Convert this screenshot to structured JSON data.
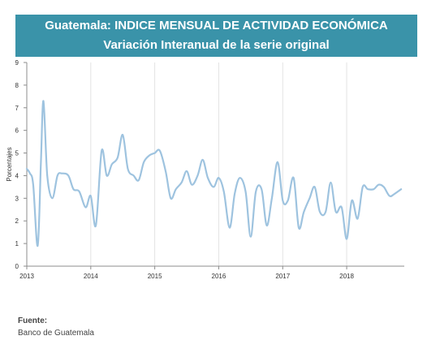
{
  "header": {
    "title": "Guatemala: INDICE MENSUAL DE ACTIVIDAD ECONÓMICA",
    "subtitle": "Variación Interanual de la serie original"
  },
  "footer": {
    "source_label": "Fuente:",
    "source_text": "Banco de Guatemala"
  },
  "colors": {
    "banner": "#3a93a9",
    "line": "#9ec3df",
    "grid": "#e3e3e3"
  },
  "chart_data": {
    "type": "line",
    "title": "",
    "xlabel": "",
    "ylabel": "Porcentajes",
    "ylim": [
      0,
      9
    ],
    "yticks": [
      "0",
      "1",
      "2",
      "3",
      "4",
      "5",
      "6",
      "7",
      "8",
      "9"
    ],
    "xlim": [
      2013.0,
      2018.9
    ],
    "xticks": [
      "2013",
      "2014",
      "2015",
      "2016",
      "2017",
      "2018"
    ],
    "grid": "vertical",
    "series": [
      {
        "name": "",
        "points": [
          [
            2013.0,
            4.3
          ],
          [
            2013.05,
            4.1
          ],
          [
            2013.1,
            3.6
          ],
          [
            2013.17,
            0.9
          ],
          [
            2013.22,
            4.5
          ],
          [
            2013.26,
            7.3
          ],
          [
            2013.32,
            4.0
          ],
          [
            2013.4,
            3.0
          ],
          [
            2013.48,
            4.0
          ],
          [
            2013.55,
            4.1
          ],
          [
            2013.65,
            4.0
          ],
          [
            2013.73,
            3.4
          ],
          [
            2013.82,
            3.3
          ],
          [
            2013.92,
            2.6
          ],
          [
            2014.0,
            3.1
          ],
          [
            2014.08,
            1.8
          ],
          [
            2014.17,
            5.1
          ],
          [
            2014.25,
            4.0
          ],
          [
            2014.33,
            4.5
          ],
          [
            2014.42,
            4.8
          ],
          [
            2014.5,
            5.8
          ],
          [
            2014.58,
            4.3
          ],
          [
            2014.67,
            4.0
          ],
          [
            2014.75,
            3.8
          ],
          [
            2014.83,
            4.6
          ],
          [
            2014.92,
            4.9
          ],
          [
            2015.0,
            5.0
          ],
          [
            2015.08,
            5.1
          ],
          [
            2015.17,
            4.2
          ],
          [
            2015.25,
            3.0
          ],
          [
            2015.33,
            3.4
          ],
          [
            2015.42,
            3.7
          ],
          [
            2015.5,
            4.2
          ],
          [
            2015.58,
            3.6
          ],
          [
            2015.67,
            4.0
          ],
          [
            2015.75,
            4.7
          ],
          [
            2015.83,
            3.9
          ],
          [
            2015.92,
            3.5
          ],
          [
            2016.0,
            3.9
          ],
          [
            2016.08,
            3.3
          ],
          [
            2016.17,
            1.7
          ],
          [
            2016.25,
            3.2
          ],
          [
            2016.33,
            3.9
          ],
          [
            2016.42,
            3.3
          ],
          [
            2016.5,
            1.3
          ],
          [
            2016.58,
            3.3
          ],
          [
            2016.67,
            3.4
          ],
          [
            2016.75,
            1.8
          ],
          [
            2016.83,
            3.0
          ],
          [
            2016.92,
            4.6
          ],
          [
            2017.0,
            2.9
          ],
          [
            2017.08,
            2.9
          ],
          [
            2017.17,
            3.9
          ],
          [
            2017.25,
            1.7
          ],
          [
            2017.33,
            2.4
          ],
          [
            2017.42,
            3.0
          ],
          [
            2017.5,
            3.5
          ],
          [
            2017.58,
            2.4
          ],
          [
            2017.67,
            2.4
          ],
          [
            2017.75,
            3.7
          ],
          [
            2017.83,
            2.4
          ],
          [
            2017.92,
            2.6
          ],
          [
            2018.0,
            1.2
          ],
          [
            2018.08,
            2.9
          ],
          [
            2018.17,
            2.1
          ],
          [
            2018.25,
            3.5
          ],
          [
            2018.33,
            3.4
          ],
          [
            2018.42,
            3.4
          ],
          [
            2018.5,
            3.6
          ],
          [
            2018.58,
            3.5
          ],
          [
            2018.67,
            3.1
          ],
          [
            2018.75,
            3.2
          ],
          [
            2018.85,
            3.4
          ]
        ]
      }
    ]
  }
}
